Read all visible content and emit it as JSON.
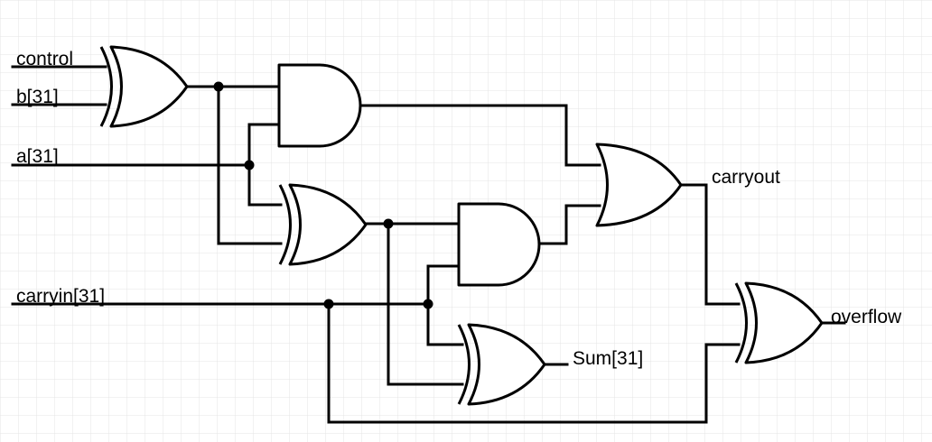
{
  "diagram": {
    "labels": {
      "control": "control",
      "b31": "b[31]",
      "a31": "a[31]",
      "carryin31": "carryin[31]",
      "carryout": "carryout",
      "sum31": "Sum[31]",
      "overflow": "overflow"
    },
    "colors": {
      "background": "#ffffff",
      "grid": "#e4e4e4",
      "ink": "#000000"
    },
    "grid": true
  }
}
